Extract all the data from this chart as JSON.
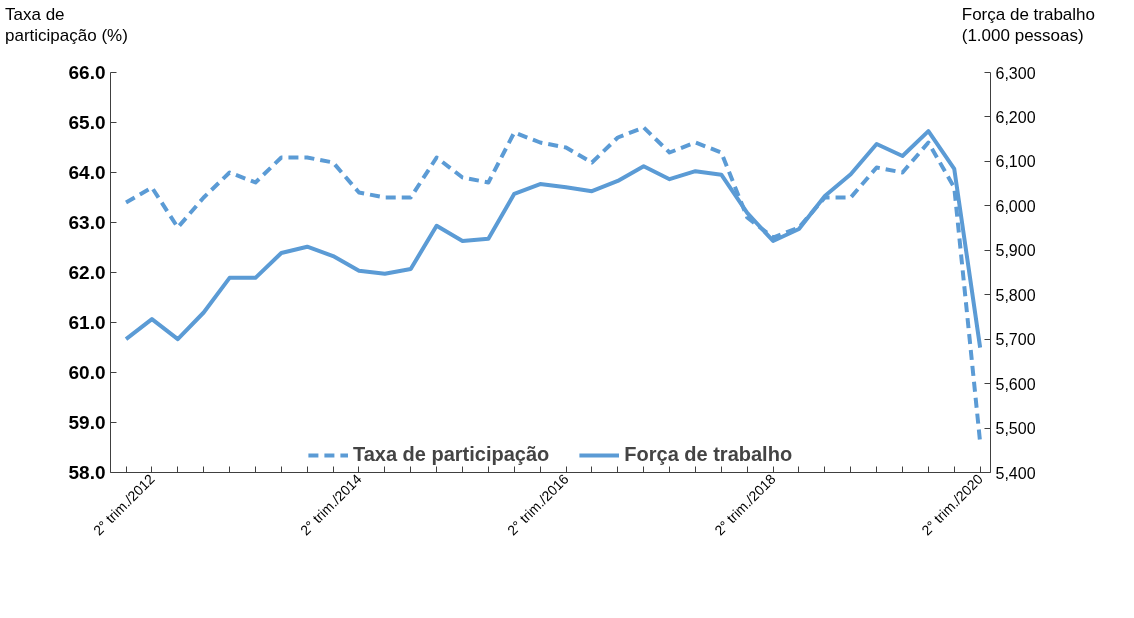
{
  "chart_data": {
    "type": "line",
    "ylabel": "Taxa de\nparticipação (%)",
    "y2label": "Força de trabalho\n(1.000 pessoas)",
    "categories": [
      null,
      "2° trim./2012",
      null,
      null,
      null,
      null,
      null,
      null,
      null,
      "2° trim./2014",
      null,
      null,
      null,
      null,
      null,
      null,
      null,
      "2° trim./2016",
      null,
      null,
      null,
      null,
      null,
      null,
      null,
      "2° trim./2018",
      null,
      null,
      null,
      null,
      null,
      null,
      null,
      "2° trim./2020"
    ],
    "series": [
      {
        "name": "Taxa de participação",
        "color": "#5b9bd5",
        "line_style": "dashed",
        "values": [
          63.4,
          63.7,
          62.9,
          63.5,
          64.0,
          63.8,
          64.3,
          64.3,
          64.2,
          63.6,
          63.5,
          63.5,
          64.3,
          63.9,
          63.8,
          64.8,
          64.6,
          64.5,
          64.2,
          64.7,
          64.9,
          64.4,
          64.6,
          64.4,
          63.1,
          62.7,
          62.9,
          63.5,
          63.5,
          64.1,
          64.0,
          64.6,
          63.7,
          58.6
        ]
      },
      {
        "name": "Força de trabalho",
        "color": "#5b9bd5",
        "line_style": "solid",
        "axis": "y2",
        "values": [
          5700,
          5745,
          5700,
          5760,
          5838,
          5838,
          5894,
          5908,
          5887,
          5854,
          5847,
          5858,
          5955,
          5921,
          5926,
          6027,
          6049,
          6042,
          6033,
          6056,
          6089,
          6060,
          6078,
          6070,
          5984,
          5921,
          5948,
          6022,
          6071,
          6139,
          6112,
          6168,
          6083,
          5681
        ]
      }
    ],
    "ylim": [
      58.0,
      66.0
    ],
    "yticks": [
      {
        "value": 58,
        "label": "58.0"
      },
      {
        "value": 59,
        "label": "59.0"
      },
      {
        "value": 60,
        "label": "60.0"
      },
      {
        "value": 61,
        "label": "61.0"
      },
      {
        "value": 62,
        "label": "62.0"
      },
      {
        "value": 63,
        "label": "63.0"
      },
      {
        "value": 64,
        "label": "64.0"
      },
      {
        "value": 65,
        "label": "65.0"
      },
      {
        "value": 66,
        "label": "66.0"
      }
    ],
    "y2lim": [
      5400,
      6300
    ],
    "y2ticks": [
      {
        "value": 5400,
        "label": "5,400"
      },
      {
        "value": 5500,
        "label": "5,500"
      },
      {
        "value": 5600,
        "label": "5,600"
      },
      {
        "value": 5700,
        "label": "5,700"
      },
      {
        "value": 5800,
        "label": "5,800"
      },
      {
        "value": 5900,
        "label": "5,900"
      },
      {
        "value": 6000,
        "label": "6,000"
      },
      {
        "value": 6100,
        "label": "6,100"
      },
      {
        "value": 6200,
        "label": "6,200"
      },
      {
        "value": 6300,
        "label": "6,300"
      }
    ],
    "grid": false,
    "legend": "bottom"
  }
}
